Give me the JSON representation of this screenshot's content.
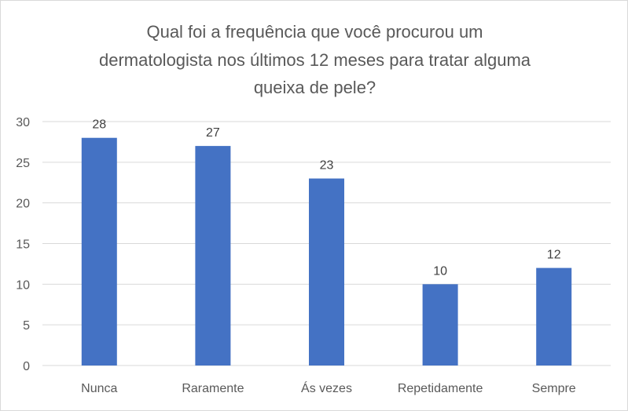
{
  "chart_data": {
    "type": "bar",
    "title_lines": [
      "Qual foi a frequência que você procurou um",
      "dermatologista nos últimos 12 meses para tratar alguma",
      "queixa de pele?"
    ],
    "categories": [
      "Nunca",
      "Raramente",
      "Ás vezes",
      "Repetidamente",
      "Sempre"
    ],
    "values": [
      28,
      27,
      23,
      10,
      12
    ],
    "data_labels": [
      "28",
      "27",
      "23",
      "10",
      "12"
    ],
    "xlabel": "",
    "ylabel": "",
    "ylim": [
      0,
      30
    ],
    "yticks": [
      "0",
      "5",
      "10",
      "15",
      "20",
      "25",
      "30"
    ],
    "grid": true,
    "legend": "none",
    "bar_color": "#4472C4",
    "grid_color": "#d9d9d9",
    "text_color": "#595959"
  }
}
